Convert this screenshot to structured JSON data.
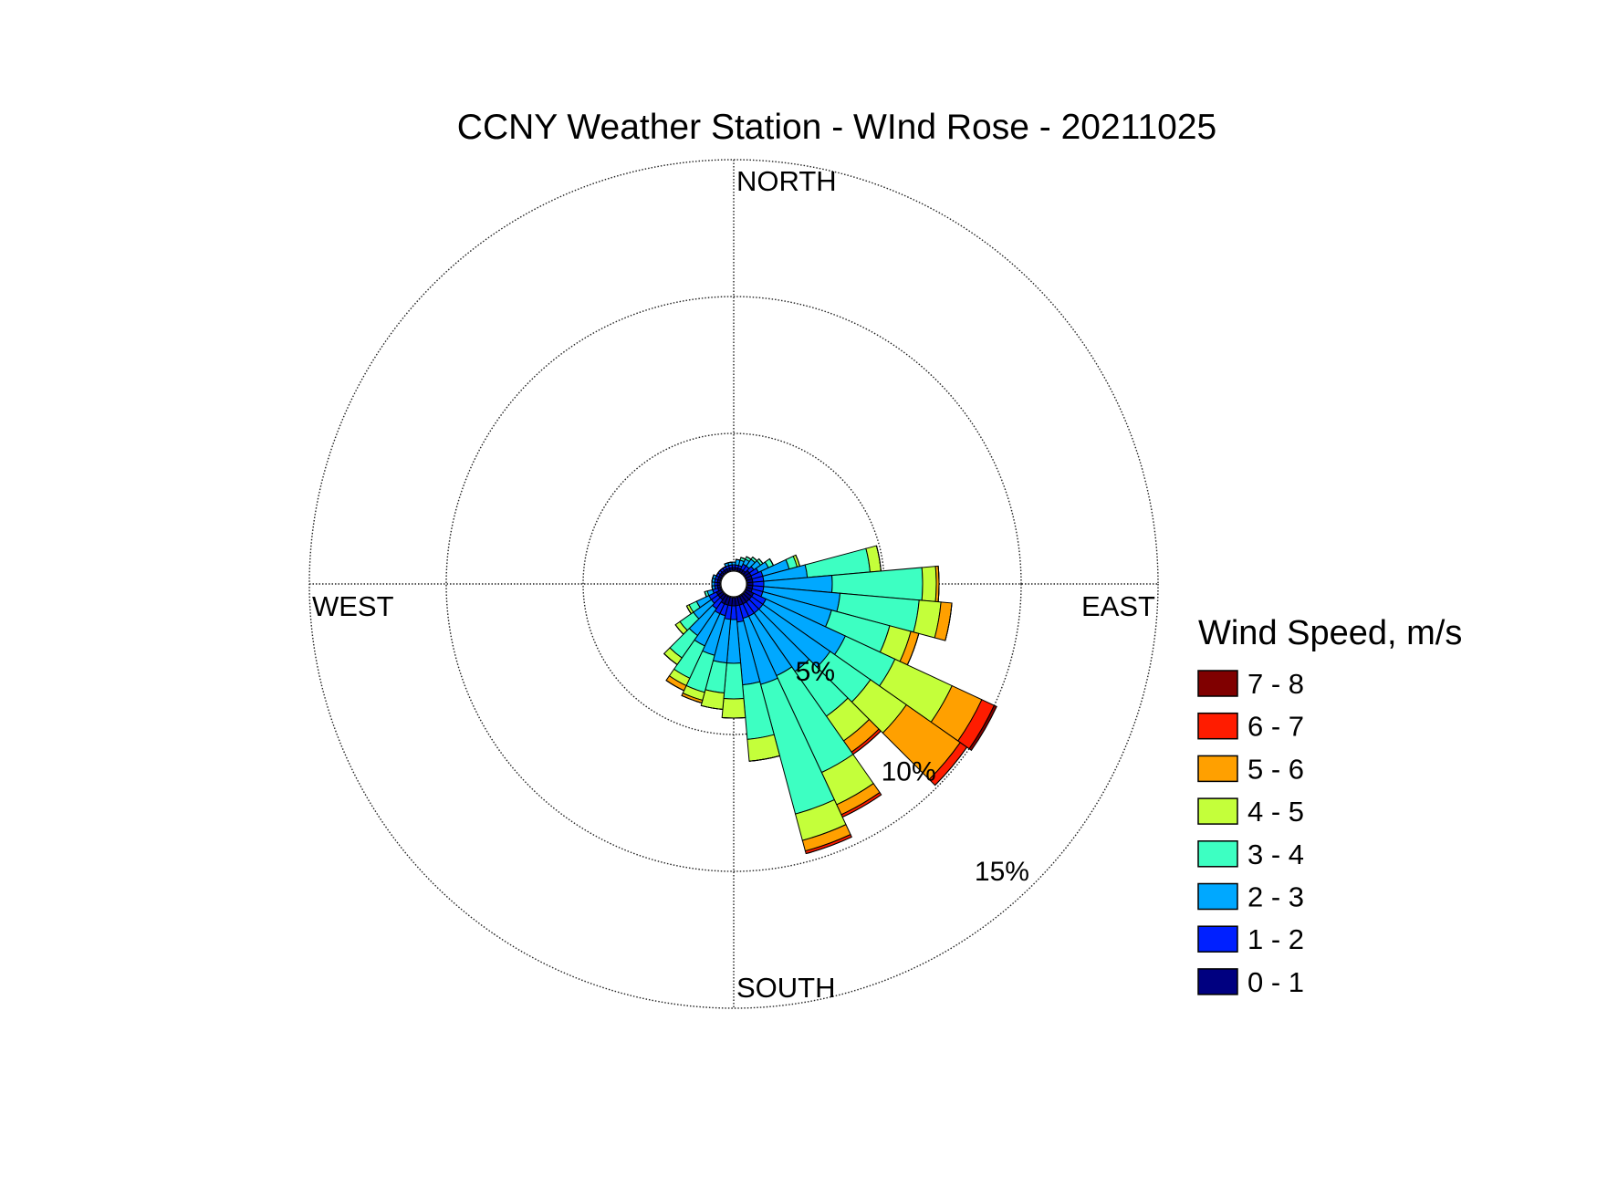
{
  "chart_data": {
    "type": "windrose",
    "title": "CCNY Weather Station - WInd Rose - 20211025",
    "direction_labels": [
      "NORTH",
      "EAST",
      "SOUTH",
      "WEST"
    ],
    "legend_title": "Wind Speed, m/s",
    "rlim": [
      0,
      15
    ],
    "rticks": [
      {
        "value": 5,
        "label": "5%"
      },
      {
        "value": 10,
        "label": "10%"
      },
      {
        "value": 15,
        "label": "15%"
      }
    ],
    "grid": true,
    "x": [
      0,
      10,
      20,
      30,
      40,
      50,
      60,
      70,
      80,
      90,
      100,
      110,
      120,
      130,
      140,
      150,
      160,
      170,
      180,
      190,
      200,
      210,
      220,
      230,
      240,
      250,
      260,
      270,
      280,
      290,
      300,
      310,
      320,
      330,
      340,
      350
    ],
    "series": [
      {
        "name": "0 - 1",
        "color": "#000080",
        "values": [
          0.1,
          0.1,
          0.1,
          0.1,
          0.1,
          0.2,
          0.2,
          0.2,
          0.2,
          0.2,
          0.2,
          0.2,
          0.3,
          0.3,
          0.3,
          0.3,
          0.3,
          0.3,
          0.3,
          0.3,
          0.3,
          0.3,
          0.2,
          0.2,
          0.2,
          0.1,
          0.1,
          0.1,
          0.1,
          0.1,
          0.1,
          0.1,
          0.1,
          0.1,
          0.1,
          0.1
        ]
      },
      {
        "name": "1 - 2",
        "color": "#0020ff",
        "values": [
          0.1,
          0.1,
          0.1,
          0.2,
          0.2,
          0.2,
          0.3,
          0.4,
          0.4,
          0.4,
          0.4,
          0.4,
          0.5,
          0.5,
          0.5,
          0.5,
          0.5,
          0.6,
          0.5,
          0.5,
          0.4,
          0.4,
          0.4,
          0.3,
          0.3,
          0.2,
          0.1,
          0.1,
          0.1,
          0.1,
          0.1,
          0.1,
          0.1,
          0.1,
          0.1,
          0.1
        ]
      },
      {
        "name": "2 - 3",
        "color": "#00a8ff",
        "values": [
          0.1,
          0.2,
          0.2,
          0.2,
          0.3,
          0.3,
          0.4,
          1.0,
          1.6,
          2.5,
          2.8,
          2.6,
          3.2,
          3.0,
          2.6,
          2.4,
          2.5,
          2.3,
          1.6,
          1.6,
          1.5,
          1.3,
          1.2,
          0.8,
          0.5,
          0.2,
          0.1,
          0.1,
          0.1,
          0.1,
          0,
          0,
          0,
          0,
          0.1,
          0.1
        ]
      },
      {
        "name": "3 - 4",
        "color": "#3dffc2",
        "values": [
          0,
          0,
          0.1,
          0.1,
          0.1,
          0.1,
          0.2,
          0.3,
          2.3,
          3.3,
          2.9,
          2.2,
          2.0,
          1.8,
          2.0,
          3.9,
          4.9,
          2.0,
          1.3,
          1.1,
          1.4,
          1.3,
          1.0,
          0.6,
          0.3,
          0.1,
          0,
          0,
          0,
          0,
          0,
          0,
          0,
          0,
          0,
          0
        ]
      },
      {
        "name": "4 - 5",
        "color": "#c4ff3a",
        "values": [
          0,
          0,
          0,
          0,
          0,
          0,
          0,
          0.1,
          0.4,
          0.5,
          0.8,
          0.8,
          2.3,
          1.6,
          1.1,
          1.3,
          1.0,
          0.8,
          0.7,
          0.6,
          0.3,
          0.3,
          0.3,
          0.2,
          0.1,
          0,
          0,
          0,
          0,
          0,
          0,
          0,
          0,
          0,
          0,
          0
        ]
      },
      {
        "name": "5 - 6",
        "color": "#ffa000",
        "values": [
          0,
          0,
          0,
          0,
          0,
          0,
          0,
          0,
          0,
          0.1,
          0.4,
          0.3,
          1.2,
          2.4,
          0.5,
          0.4,
          0.4,
          0,
          0,
          0,
          0.1,
          0.2,
          0,
          0,
          0,
          0,
          0,
          0,
          0,
          0,
          0,
          0,
          0,
          0,
          0,
          0
        ]
      },
      {
        "name": "6 - 7",
        "color": "#ff1c00",
        "values": [
          0,
          0,
          0,
          0,
          0,
          0,
          0,
          0,
          0,
          0,
          0,
          0,
          0.5,
          0.3,
          0.1,
          0.1,
          0.1,
          0,
          0,
          0,
          0,
          0,
          0,
          0,
          0,
          0,
          0,
          0,
          0,
          0,
          0,
          0,
          0,
          0,
          0,
          0
        ]
      },
      {
        "name": "7 - 8",
        "color": "#800000",
        "values": [
          0,
          0,
          0,
          0,
          0,
          0,
          0,
          0,
          0,
          0,
          0,
          0,
          0.1,
          0,
          0,
          0,
          0,
          0,
          0,
          0,
          0,
          0,
          0,
          0,
          0,
          0,
          0,
          0,
          0,
          0,
          0,
          0,
          0,
          0,
          0,
          0
        ]
      }
    ]
  }
}
